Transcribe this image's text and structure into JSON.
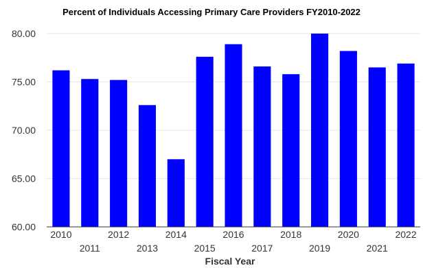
{
  "chart_data": {
    "type": "bar",
    "title": "Percent of Individuals Accessing Primary Care Providers FY2010-2022",
    "xlabel": "Fiscal Year",
    "ylabel": "",
    "categories": [
      "2010",
      "2011",
      "2012",
      "2013",
      "2014",
      "2015",
      "2016",
      "2017",
      "2018",
      "2019",
      "2020",
      "2021",
      "2022"
    ],
    "values": [
      76.2,
      75.3,
      75.2,
      72.6,
      67.0,
      77.6,
      78.9,
      76.6,
      75.8,
      80.0,
      78.2,
      76.5,
      76.9
    ],
    "ylim": [
      60,
      80
    ],
    "yticks": [
      "60.00",
      "65.00",
      "70.00",
      "75.00",
      "80.00"
    ],
    "grid": true,
    "bar_color": "#0000ff",
    "legend": "none"
  }
}
